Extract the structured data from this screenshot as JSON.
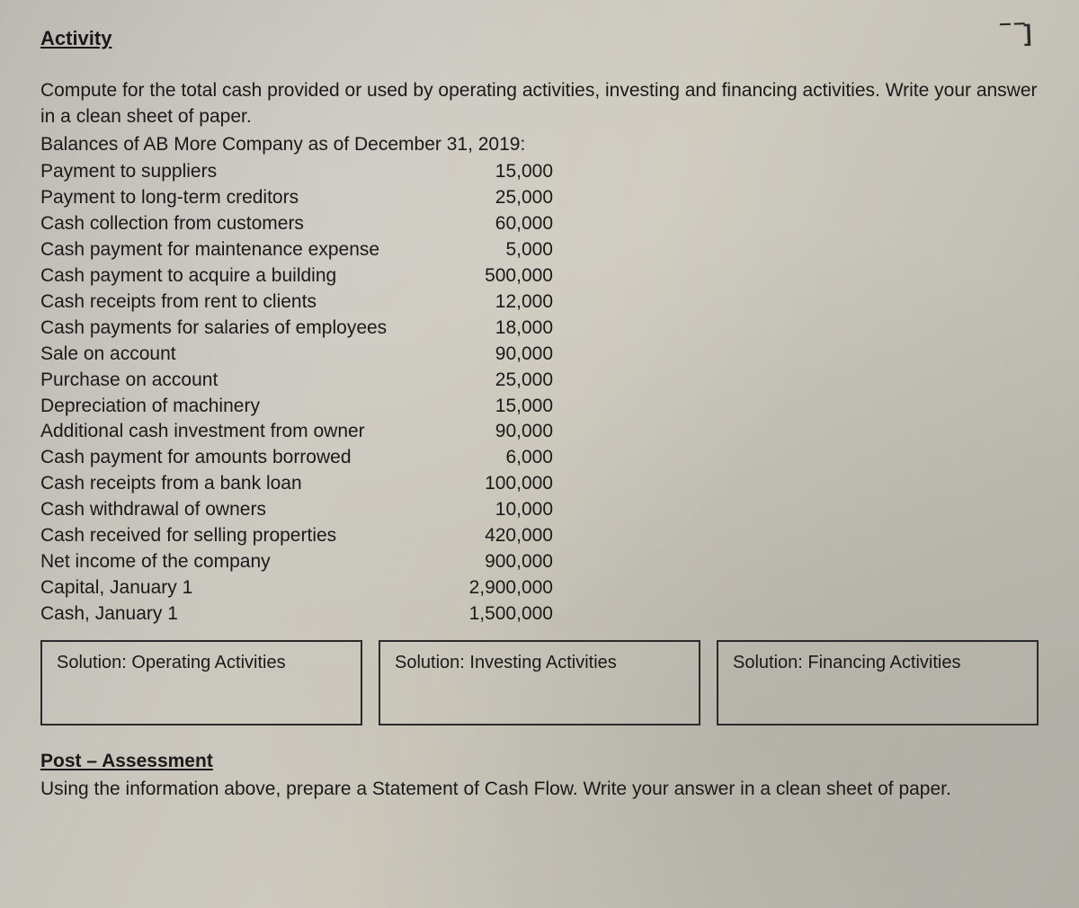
{
  "page": {
    "heading": "Activity",
    "instruction": "Compute for the total cash provided or used by operating activities, investing and financing activities. Write your answer in a clean sheet of paper.",
    "subheading": "Balances of AB More Company as of December 31, 2019:",
    "post_heading": "Post – Assessment",
    "post_instruction": "Using the information above, prepare a Statement of Cash Flow. Write your answer in a clean sheet of paper.",
    "corner_mark": "‾ ‾]"
  },
  "balances": [
    {
      "label": "Payment to suppliers",
      "value": "15,000"
    },
    {
      "label": "Payment to long-term creditors",
      "value": "25,000"
    },
    {
      "label": "Cash collection from customers",
      "value": "60,000"
    },
    {
      "label": "Cash payment for maintenance expense",
      "value": "5,000"
    },
    {
      "label": "Cash payment to acquire a building",
      "value": "500,000"
    },
    {
      "label": "Cash receipts from rent to clients",
      "value": "12,000"
    },
    {
      "label": "Cash payments for salaries of employees",
      "value": "18,000"
    },
    {
      "label": "Sale on account",
      "value": "90,000"
    },
    {
      "label": "Purchase on account",
      "value": "25,000"
    },
    {
      "label": "Depreciation of machinery",
      "value": "15,000"
    },
    {
      "label": "Additional cash investment from owner",
      "value": "90,000"
    },
    {
      "label": "Cash payment for amounts borrowed",
      "value": "6,000"
    },
    {
      "label": "Cash receipts from a bank loan",
      "value": "100,000"
    },
    {
      "label": "Cash withdrawal of owners",
      "value": "10,000"
    },
    {
      "label": "Cash received for selling properties",
      "value": "420,000"
    },
    {
      "label": "Net income of the company",
      "value": "900,000"
    },
    {
      "label": "Capital, January 1",
      "value": "2,900,000"
    },
    {
      "label": "Cash, January 1",
      "value": "1,500,000"
    }
  ],
  "solution_boxes": {
    "operating": "Solution: Operating Activities",
    "investing": "Solution: Investing Activities",
    "financing": "Solution: Financing Activities"
  },
  "style": {
    "font_size_body": 21,
    "font_size_heading": 22,
    "text_color": "#1a1a1a",
    "box_border_color": "#2a2a2a",
    "box_border_width": 2,
    "background_gradient": [
      "#b8b5ae",
      "#c8c5bd",
      "#cecabe",
      "#c5c2b8",
      "#b5b2aa"
    ]
  }
}
